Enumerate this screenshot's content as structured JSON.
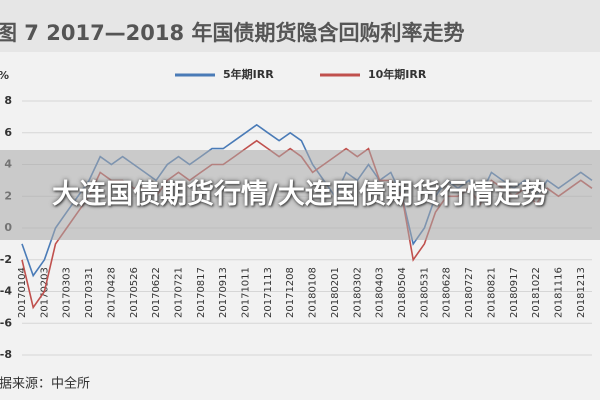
{
  "chart_data": {
    "type": "line",
    "title": "图 7  2017—2018 年国债期货隐含回购利率走势",
    "y_label": "%",
    "source": "数据来源：中全所",
    "categories": [
      "20170104",
      null,
      "20170203",
      null,
      "20170303",
      null,
      "20170331",
      null,
      "20170428",
      null,
      "20170526",
      null,
      "20170622",
      null,
      "20170721",
      null,
      "20170817",
      null,
      "20170913",
      null,
      "20171011",
      null,
      "20171113",
      null,
      "20171208",
      null,
      "20180108",
      null,
      "20180201",
      null,
      "20180302",
      null,
      "20180403",
      null,
      "20180504",
      null,
      "20180531",
      null,
      "20180628",
      null,
      "20180727",
      null,
      "20180821",
      null,
      "20180917",
      null,
      "20181022",
      null,
      "20181116",
      null,
      "20181213",
      null
    ],
    "series": [
      {
        "name": "5年期IRR",
        "color": "#4a7bb7",
        "values": [
          -1,
          -3,
          -2,
          0,
          1,
          2,
          3,
          4.5,
          4,
          4.5,
          4,
          3.5,
          3,
          4,
          4.5,
          4,
          4.5,
          5,
          5,
          5.5,
          6,
          6.5,
          6,
          5.5,
          6,
          5.5,
          4,
          3,
          2,
          3.5,
          3,
          4,
          3,
          3.5,
          2,
          -1,
          0,
          2,
          3,
          2.5,
          3,
          2,
          3.5,
          3,
          2.5,
          3,
          2,
          3,
          2.5,
          3,
          3.5,
          3
        ]
      },
      {
        "name": "10年期IRR",
        "color": "#c0504d",
        "values": [
          -2,
          -5,
          -4,
          -1,
          0,
          1,
          2,
          3.5,
          3,
          3,
          2.5,
          2.5,
          2,
          3,
          3.5,
          3,
          3.5,
          4,
          4,
          4.5,
          5,
          5.5,
          5,
          4.5,
          5,
          4.5,
          3.5,
          4,
          4.5,
          5,
          4.5,
          5,
          3,
          3,
          2,
          -2,
          -1,
          1,
          2,
          2,
          2.5,
          1.5,
          3,
          2.5,
          2,
          2.5,
          1.5,
          2.5,
          2,
          2.5,
          3,
          2.5
        ]
      }
    ],
    "ylim": [
      -8,
      8
    ],
    "yticks": [
      -8,
      -6,
      -4,
      -2,
      0,
      2,
      4,
      6,
      8
    ],
    "grid": true
  },
  "overlay": {
    "line1": "大连国债期货行情/大连国债期货行情走势"
  }
}
